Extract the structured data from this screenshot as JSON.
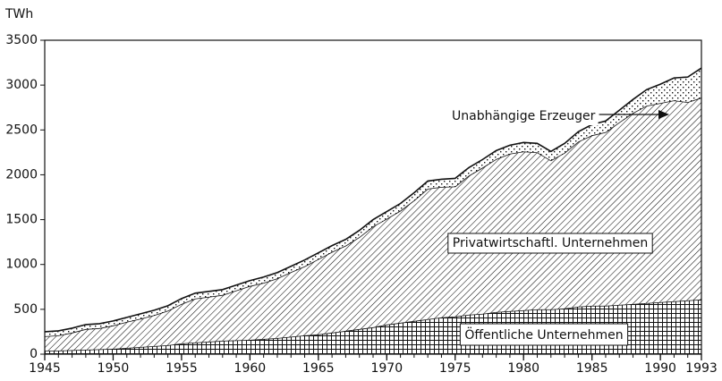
{
  "chart_data": {
    "type": "stacked-area",
    "y_label": "TWh",
    "x": [
      1945,
      1946,
      1947,
      1948,
      1949,
      1950,
      1951,
      1952,
      1953,
      1954,
      1955,
      1956,
      1957,
      1958,
      1959,
      1960,
      1961,
      1962,
      1963,
      1964,
      1965,
      1966,
      1967,
      1968,
      1969,
      1970,
      1971,
      1972,
      1973,
      1974,
      1975,
      1976,
      1977,
      1978,
      1979,
      1980,
      1981,
      1982,
      1983,
      1984,
      1985,
      1986,
      1987,
      1988,
      1989,
      1990,
      1991,
      1992,
      1993
    ],
    "series": [
      {
        "name": "Öffentliche Unternehmen",
        "color": "#111111",
        "values": [
          40,
          40,
          45,
          50,
          55,
          60,
          70,
          80,
          90,
          100,
          120,
          130,
          140,
          150,
          155,
          160,
          170,
          180,
          195,
          210,
          220,
          240,
          260,
          280,
          300,
          330,
          350,
          370,
          390,
          410,
          420,
          440,
          450,
          470,
          480,
          490,
          500,
          500,
          510,
          530,
          540,
          540,
          550,
          560,
          570,
          580,
          590,
          600,
          610
        ]
      },
      {
        "name": "Privatwirtschaftl. Unternehmen",
        "color": "#111111",
        "values": [
          160,
          170,
          195,
          230,
          235,
          260,
          290,
          315,
          345,
          385,
          440,
          490,
          500,
          510,
          555,
          600,
          625,
          665,
          720,
          770,
          840,
          900,
          950,
          1025,
          1125,
          1180,
          1250,
          1345,
          1455,
          1455,
          1450,
          1550,
          1630,
          1705,
          1755,
          1770,
          1750,
          1660,
          1735,
          1840,
          1900,
          1935,
          2035,
          2130,
          2200,
          2220,
          2240,
          2210,
          2250
        ]
      },
      {
        "name": "Unabhängige Erzeuger",
        "color": "#111111",
        "values": [
          50,
          50,
          50,
          50,
          50,
          50,
          50,
          55,
          55,
          55,
          60,
          60,
          60,
          60,
          60,
          60,
          65,
          65,
          65,
          70,
          70,
          70,
          70,
          75,
          75,
          80,
          80,
          85,
          85,
          85,
          90,
          90,
          90,
          95,
          95,
          100,
          100,
          100,
          105,
          110,
          120,
          125,
          135,
          150,
          180,
          210,
          250,
          280,
          330
        ]
      }
    ],
    "xlim": [
      1945,
      1993
    ],
    "xticks": [
      1945,
      1950,
      1955,
      1960,
      1965,
      1970,
      1975,
      1980,
      1985,
      1990,
      1993
    ],
    "ylim": [
      0,
      3500
    ],
    "yticks": [
      0,
      500,
      1000,
      1500,
      2000,
      2500,
      3000,
      3500
    ]
  }
}
